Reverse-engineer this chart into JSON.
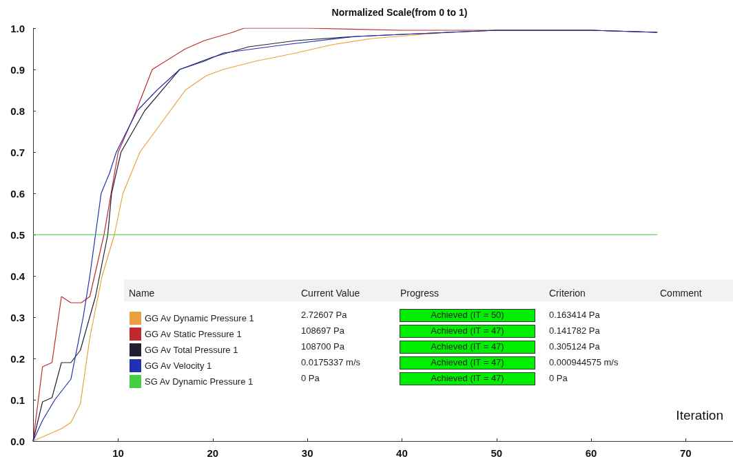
{
  "chart_data": {
    "type": "line",
    "title": "Normalized Scale(from 0 to 1)",
    "xlabel": "Iteration",
    "xlim": [
      1,
      75
    ],
    "xticks": [
      10,
      20,
      30,
      40,
      50,
      60,
      70
    ],
    "ylim": [
      0,
      1
    ],
    "yticks": [
      {
        "value": 0,
        "label": "0.0"
      },
      {
        "value": 0.1,
        "label": "0.1"
      },
      {
        "value": 0.2,
        "label": "0.2"
      },
      {
        "value": 0.3,
        "label": "0.3"
      },
      {
        "value": 0.4,
        "label": "0.4"
      },
      {
        "value": 0.5,
        "label": "0.5"
      },
      {
        "value": 0.6,
        "label": "0.6"
      },
      {
        "value": 0.7,
        "label": "0.7"
      },
      {
        "value": 0.8,
        "label": "0.8"
      },
      {
        "value": 0.9,
        "label": "0.9"
      },
      {
        "value": 1,
        "label": "1.0"
      }
    ],
    "grid": false,
    "legend": "bottom left",
    "marker": "none",
    "line_style": "solid",
    "series": [
      {
        "name": "GG Av Dynamic Pressure 1",
        "color": "#e8a040",
        "x": [
          1,
          2,
          3,
          4,
          5,
          6,
          7,
          8.3,
          9.6,
          10.5,
          12.3,
          15.5,
          17.1,
          19.3,
          21.1,
          24.5,
          28.8,
          32.6,
          36.8,
          45
        ],
        "values": [
          0,
          0.01,
          0.02,
          0.03,
          0.045,
          0.09,
          0.25,
          0.4,
          0.5,
          0.6,
          0.7,
          0.8,
          0.85,
          0.885,
          0.9,
          0.92,
          0.94,
          0.96,
          0.975,
          0.99
        ]
      },
      {
        "name": "GG Av Static Pressure 1",
        "color": "#c0282c",
        "x": [
          1,
          2,
          3,
          4,
          5,
          6.1,
          7,
          8.5,
          10,
          11.9,
          13.6,
          17.1,
          19.1,
          22.1,
          23.3,
          30,
          40,
          50,
          60,
          67
        ],
        "values": [
          0,
          0.18,
          0.19,
          0.35,
          0.335,
          0.335,
          0.35,
          0.5,
          0.7,
          0.8,
          0.9,
          0.95,
          0.97,
          0.99,
          1,
          1,
          0.995,
          0.995,
          0.995,
          0.99
        ]
      },
      {
        "name": "GG Av Total Pressure 1",
        "color": "#202030",
        "x": [
          1,
          2,
          3,
          4,
          5,
          6,
          7.6,
          8.9,
          9.3,
          10.3,
          12.8,
          16.5,
          20,
          23.8,
          28.8,
          35.1,
          40,
          45,
          50,
          55,
          60,
          67
        ],
        "values": [
          0,
          0.095,
          0.105,
          0.19,
          0.19,
          0.22,
          0.35,
          0.5,
          0.6,
          0.7,
          0.8,
          0.9,
          0.93,
          0.955,
          0.97,
          0.98,
          0.985,
          0.99,
          0.995,
          0.995,
          0.995,
          0.99
        ]
      },
      {
        "name": "GG Av Velocity 1",
        "color": "#2030b0",
        "x": [
          1,
          2,
          3.3,
          5,
          6.3,
          7,
          7.6,
          8.2,
          9.1,
          9.8,
          12,
          14.1,
          16.5,
          19.1,
          21.1,
          27.6,
          35.1,
          40,
          45,
          50,
          60,
          67
        ],
        "values": [
          0,
          0.05,
          0.1,
          0.15,
          0.3,
          0.4,
          0.5,
          0.6,
          0.65,
          0.7,
          0.8,
          0.85,
          0.9,
          0.92,
          0.94,
          0.96,
          0.98,
          0.985,
          0.99,
          0.995,
          0.995,
          0.99
        ]
      },
      {
        "name": "SG Av Dynamic Pressure 1",
        "color": "#40d040",
        "x": [
          1,
          67
        ],
        "values": [
          0.5,
          0.5
        ]
      }
    ],
    "annotations": [
      "Name",
      "Current Value",
      "Progress",
      "Criterion",
      "Comment",
      "2.72607 Pa",
      "Achieved (IT = 50)",
      "0.163414 Pa",
      "108697 Pa",
      "Achieved (IT = 47)",
      "0.141782 Pa",
      "108700 Pa",
      "Achieved (IT = 47)",
      "0.305124 Pa",
      "0.0175337 m/s",
      "Achieved (IT = 47)",
      "0.000944575 m/s",
      "0 Pa",
      "Achieved (IT = 47)",
      "0 Pa"
    ]
  }
}
